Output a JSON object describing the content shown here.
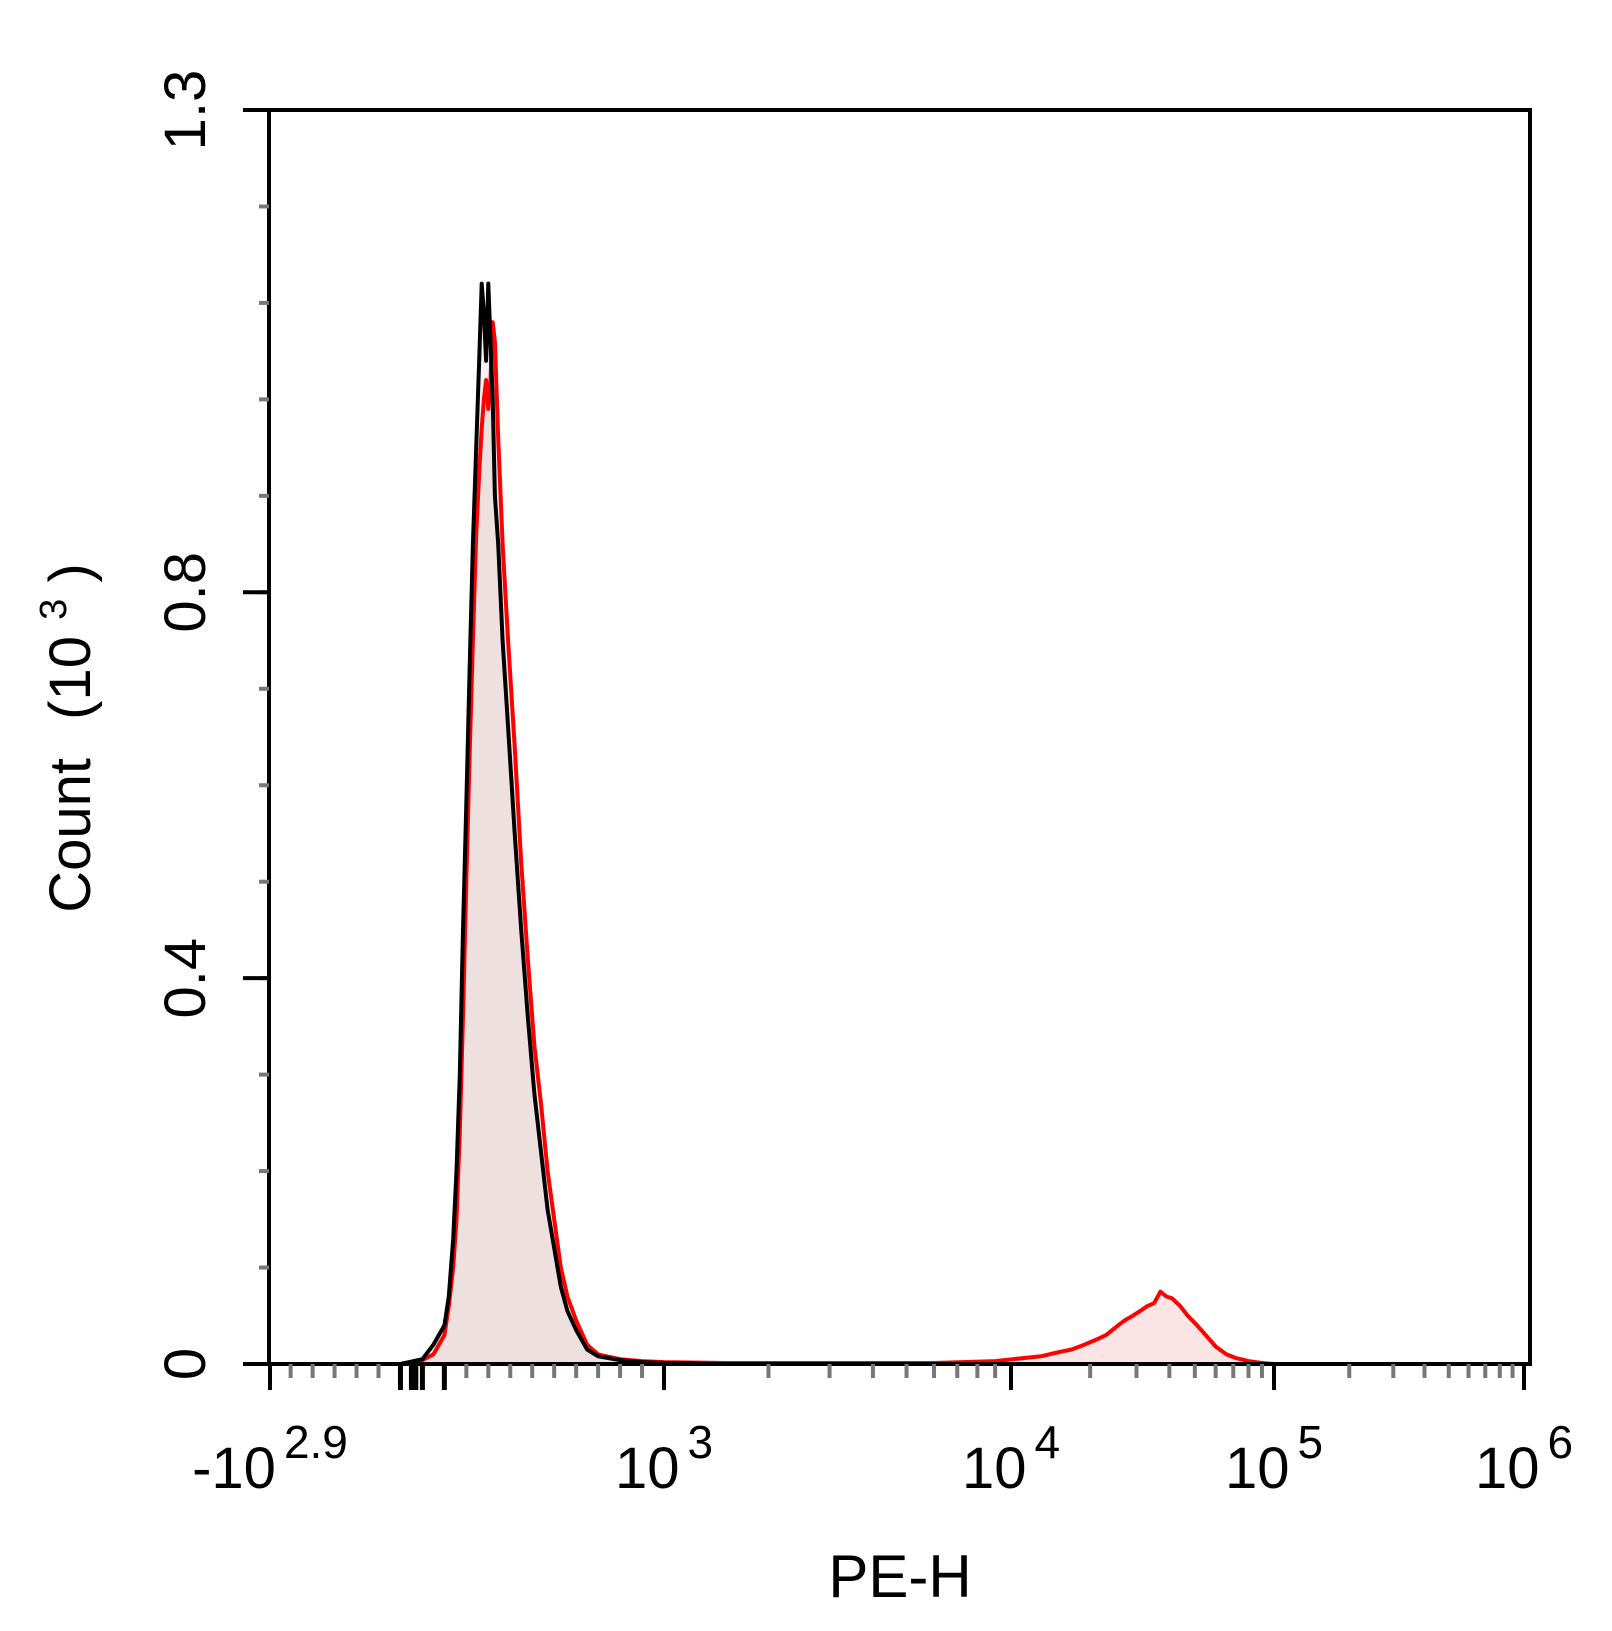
{
  "chart_data": {
    "type": "area",
    "title": "",
    "xlabel": "PE-H",
    "ylabel": {
      "prefix": "Count",
      "unit_open": "(10",
      "unit_exp": "3",
      "unit_close": ")"
    },
    "x_scale": "biexponential",
    "y_scale": "linear",
    "ylim": [
      0,
      1.3
    ],
    "y_ticks": [
      {
        "value": 0,
        "label": "0"
      },
      {
        "value": 0.4,
        "label": "0.4"
      },
      {
        "value": 0.8,
        "label": "0.8"
      },
      {
        "value": 1.3,
        "label": "1.3"
      }
    ],
    "x_ticks": [
      {
        "value": -794,
        "base": "-10",
        "exp": "2.9"
      },
      {
        "value": 1000,
        "base": "10",
        "exp": "3"
      },
      {
        "value": 10000,
        "base": "10",
        "exp": "4"
      },
      {
        "value": 100000,
        "base": "10",
        "exp": "5"
      },
      {
        "value": 1000000,
        "base": "10",
        "exp": "6"
      }
    ],
    "colors": {
      "sample_line": "#ff0000",
      "sample_fill": "#fbe3e3",
      "control_line": "#000000",
      "control_fill": "#d9d9d9",
      "axis": "#000000",
      "minor_tick": "#777777"
    },
    "series": [
      {
        "key": "sample",
        "points": [
          [
            -300,
            0
          ],
          [
            -200,
            0
          ],
          [
            -100,
            0.004
          ],
          [
            -50,
            0.01
          ],
          [
            0,
            0.03
          ],
          [
            20,
            0.06
          ],
          [
            40,
            0.1
          ],
          [
            55,
            0.15
          ],
          [
            70,
            0.24
          ],
          [
            85,
            0.36
          ],
          [
            100,
            0.5
          ],
          [
            115,
            0.63
          ],
          [
            130,
            0.75
          ],
          [
            145,
            0.86
          ],
          [
            160,
            0.93
          ],
          [
            170,
            0.97
          ],
          [
            180,
            1.0
          ],
          [
            190,
            1.02
          ],
          [
            200,
            0.99
          ],
          [
            210,
            1.02
          ],
          [
            220,
            1.08
          ],
          [
            230,
            1.06
          ],
          [
            245,
            0.96
          ],
          [
            265,
            0.85
          ],
          [
            290,
            0.75
          ],
          [
            320,
            0.64
          ],
          [
            350,
            0.52
          ],
          [
            380,
            0.42
          ],
          [
            410,
            0.33
          ],
          [
            440,
            0.27
          ],
          [
            470,
            0.2
          ],
          [
            500,
            0.15
          ],
          [
            530,
            0.1
          ],
          [
            560,
            0.07
          ],
          [
            600,
            0.045
          ],
          [
            650,
            0.02
          ],
          [
            700,
            0.01
          ],
          [
            800,
            0.005
          ],
          [
            900,
            0.003
          ],
          [
            1000,
            0.002
          ],
          [
            1500,
            0.001
          ],
          [
            3000,
            0.001
          ],
          [
            6000,
            0.001
          ],
          [
            9000,
            0.003
          ],
          [
            11000,
            0.006
          ],
          [
            13000,
            0.008
          ],
          [
            15000,
            0.012
          ],
          [
            17000,
            0.015
          ],
          [
            19000,
            0.02
          ],
          [
            21000,
            0.025
          ],
          [
            23000,
            0.03
          ],
          [
            25000,
            0.038
          ],
          [
            27000,
            0.045
          ],
          [
            29000,
            0.05
          ],
          [
            31000,
            0.055
          ],
          [
            33000,
            0.06
          ],
          [
            35000,
            0.063
          ],
          [
            37000,
            0.075
          ],
          [
            39000,
            0.07
          ],
          [
            41000,
            0.068
          ],
          [
            44000,
            0.06
          ],
          [
            47000,
            0.05
          ],
          [
            51000,
            0.04
          ],
          [
            55000,
            0.03
          ],
          [
            60000,
            0.018
          ],
          [
            66000,
            0.01
          ],
          [
            72000,
            0.006
          ],
          [
            80000,
            0.003
          ],
          [
            90000,
            0.001
          ],
          [
            100000,
            0
          ],
          [
            200000,
            0
          ],
          [
            1000000,
            0
          ]
        ]
      },
      {
        "key": "control",
        "points": [
          [
            -300,
            0
          ],
          [
            -200,
            0
          ],
          [
            -100,
            0.005
          ],
          [
            -50,
            0.02
          ],
          [
            0,
            0.04
          ],
          [
            20,
            0.07
          ],
          [
            40,
            0.13
          ],
          [
            55,
            0.2
          ],
          [
            70,
            0.3
          ],
          [
            85,
            0.45
          ],
          [
            100,
            0.58
          ],
          [
            115,
            0.72
          ],
          [
            130,
            0.85
          ],
          [
            145,
            0.95
          ],
          [
            160,
            1.05
          ],
          [
            170,
            1.12
          ],
          [
            180,
            1.09
          ],
          [
            190,
            1.04
          ],
          [
            200,
            1.12
          ],
          [
            210,
            1.06
          ],
          [
            220,
            1.0
          ],
          [
            230,
            0.9
          ],
          [
            245,
            0.85
          ],
          [
            265,
            0.75
          ],
          [
            290,
            0.66
          ],
          [
            320,
            0.55
          ],
          [
            350,
            0.45
          ],
          [
            380,
            0.36
          ],
          [
            410,
            0.28
          ],
          [
            440,
            0.22
          ],
          [
            470,
            0.16
          ],
          [
            500,
            0.12
          ],
          [
            530,
            0.08
          ],
          [
            560,
            0.055
          ],
          [
            600,
            0.035
          ],
          [
            650,
            0.015
          ],
          [
            700,
            0.008
          ],
          [
            800,
            0.004
          ],
          [
            900,
            0.002
          ],
          [
            1000,
            0.001
          ],
          [
            1500,
            0
          ],
          [
            1000000,
            0
          ]
        ]
      }
    ]
  }
}
